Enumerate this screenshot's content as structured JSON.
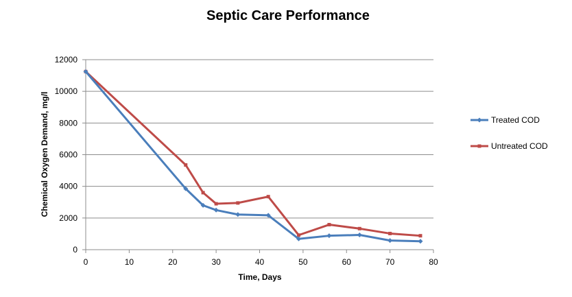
{
  "chart_data": {
    "type": "line",
    "title": "Septic Care Performance",
    "xlabel": "Time, Days",
    "ylabel": "Chemical Oxygen Demand, mg/l",
    "xlim": [
      0,
      80
    ],
    "ylim": [
      0,
      12000
    ],
    "xticks": [
      "0",
      "10",
      "20",
      "30",
      "40",
      "50",
      "60",
      "70",
      "80"
    ],
    "yticks": [
      "0",
      "2000",
      "4000",
      "6000",
      "8000",
      "10000",
      "12000"
    ],
    "grid": "horizontal",
    "legend_position": "right",
    "series": [
      {
        "name": "Treated COD",
        "color": "#4a7ebb",
        "marker": "diamond",
        "x": [
          0,
          23,
          27,
          30,
          35,
          42,
          49,
          56,
          63,
          70,
          77
        ],
        "y": [
          11250,
          3850,
          2800,
          2500,
          2220,
          2170,
          680,
          880,
          930,
          580,
          530
        ]
      },
      {
        "name": "Untreated COD",
        "color": "#be4b48",
        "marker": "square",
        "x": [
          0,
          23,
          27,
          30,
          35,
          42,
          49,
          56,
          63,
          70,
          77
        ],
        "y": [
          11250,
          5350,
          3600,
          2900,
          2950,
          3350,
          920,
          1580,
          1330,
          1020,
          880
        ]
      }
    ]
  }
}
